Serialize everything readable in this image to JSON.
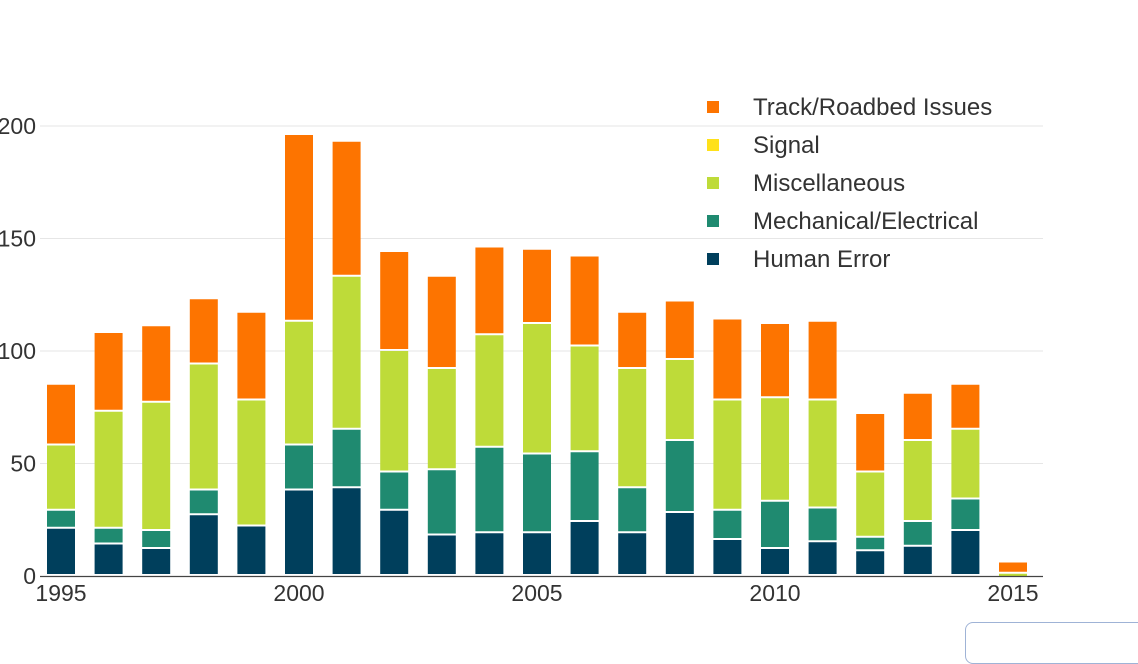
{
  "chart_data": {
    "type": "bar",
    "stacked": true,
    "x": [
      1995,
      1996,
      1997,
      1998,
      1999,
      2000,
      2001,
      2002,
      2003,
      2004,
      2005,
      2006,
      2007,
      2008,
      2009,
      2010,
      2011,
      2012,
      2013,
      2014,
      2015
    ],
    "x_ticks": [
      "1995",
      "2000",
      "2005",
      "2010",
      "2015"
    ],
    "y_ticks": [
      "0",
      "50",
      "100",
      "150",
      "200"
    ],
    "ylim": [
      0,
      200
    ],
    "grid": true,
    "legend_position": "top-right",
    "series": [
      {
        "name": "Human Error",
        "color": "#003f5c",
        "values": [
          21,
          14,
          12,
          27,
          22,
          38,
          39,
          29,
          18,
          19,
          19,
          24,
          19,
          28,
          16,
          12,
          15,
          11,
          13,
          20,
          0
        ]
      },
      {
        "name": "Mechanical/Electrical",
        "color": "#1f8a70",
        "values": [
          8,
          7,
          8,
          11,
          0,
          20,
          26,
          17,
          29,
          38,
          35,
          31,
          20,
          32,
          13,
          21,
          15,
          6,
          11,
          14,
          0
        ]
      },
      {
        "name": "Miscellaneous",
        "color": "#bedb39",
        "values": [
          29,
          52,
          57,
          56,
          56,
          55,
          68,
          54,
          45,
          50,
          58,
          47,
          53,
          36,
          49,
          46,
          48,
          29,
          36,
          31,
          1
        ]
      },
      {
        "name": "Signal",
        "color": "#ffe11a",
        "values": [
          0,
          0,
          0,
          0,
          0,
          0,
          0,
          0,
          0,
          0,
          0,
          0,
          0,
          0,
          0,
          0,
          0,
          0,
          0,
          0,
          0
        ]
      },
      {
        "name": "Track/Roadbed Issues",
        "color": "#fd7400",
        "values": [
          27,
          35,
          34,
          29,
          39,
          83,
          60,
          44,
          41,
          39,
          33,
          40,
          25,
          26,
          36,
          33,
          35,
          26,
          21,
          20,
          5
        ]
      }
    ],
    "legend_order": [
      "Track/Roadbed Issues",
      "Signal",
      "Miscellaneous",
      "Mechanical/Electrical",
      "Human Error"
    ]
  }
}
